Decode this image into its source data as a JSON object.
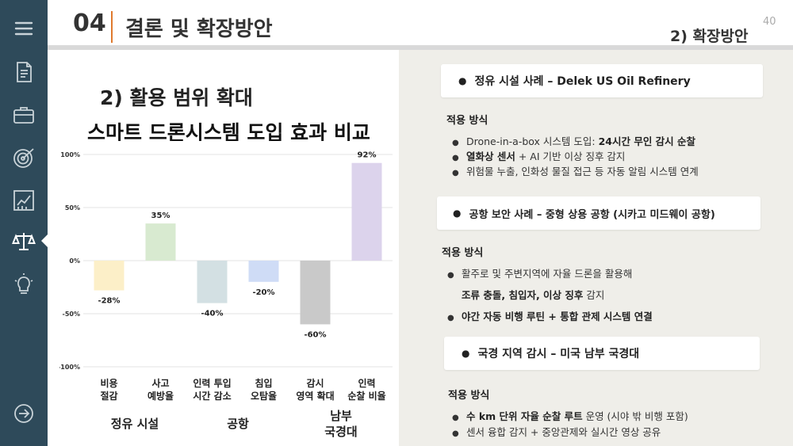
{
  "header": {
    "number": "04",
    "title": "결론 및 확장방안",
    "page_number": "40",
    "section_label": "2)  확장방안"
  },
  "sidebar": {
    "icons": [
      "menu-icon",
      "document-icon",
      "briefcase-icon",
      "target-icon",
      "chart-icon",
      "scales-icon",
      "lightbulb-icon",
      "arrow-circle-icon"
    ]
  },
  "left": {
    "title": "2) 활용 범위 확대",
    "chart_title": "스마트 드론시스템 도입 효과 비교"
  },
  "chart_data": {
    "type": "bar",
    "title": "스마트 드론시스템 도입 효과 비교",
    "categories": [
      "비용\n절감",
      "사고\n예방율",
      "인력 투입\n시간 감소",
      "침입\n오탐율",
      "감시\n영역 확대",
      "인력\n순찰 비율"
    ],
    "values": [
      -28,
      35,
      -40,
      -20,
      -60,
      92
    ],
    "data_labels": [
      "-28%",
      "35%",
      "-40%",
      "-20%",
      "-60%",
      "92%"
    ],
    "colors": [
      "#fcefc8",
      "#d8ead0",
      "#d3e0e3",
      "#cfdcf6",
      "#c9c9c9",
      "#dcd3ec"
    ],
    "yticks": [
      "100%",
      "50%",
      "0%",
      "-50%",
      "-100%"
    ],
    "ylim": [
      -100,
      100
    ],
    "grid": true,
    "groups": [
      {
        "label": "정유 시설",
        "span": [
          0,
          1
        ]
      },
      {
        "label": "공항",
        "span": [
          2,
          3
        ]
      },
      {
        "label": "남부\n국경대",
        "span": [
          4,
          5
        ]
      }
    ]
  },
  "right": {
    "cases": [
      {
        "title": "정유 시설 사례 – Delek US Oil Refinery",
        "method_label": "적용 방식",
        "bullets": [
          {
            "normal1": "Drone-in-a-box 시스템 도입: ",
            "bold": "24시간 무인 감시 순찰",
            "normal2": ""
          },
          {
            "normal1": "",
            "bold": "열화상 센서",
            "normal2": " + AI 기반 이상 징후 감지"
          },
          {
            "normal1": "위험물 누출, 인화성 물질 접근 등 자동 알림 시스템 연계",
            "bold": "",
            "normal2": ""
          }
        ]
      },
      {
        "title": "공항 보안 사례 – 중형 상용 공항 (시카고 미드웨이 공항)",
        "method_label": "적용 방식",
        "bullets": [
          {
            "normal1": "활주로 및 주변지역에 자율 드론을 활용해",
            "bold": "",
            "normal2": ""
          },
          {
            "normal1": "",
            "bold": "조류 충돌, 침입자, 이상 징후",
            "normal2": " 감지"
          },
          {
            "normal1": "",
            "bold": "야간 자동 비행 루틴 + 통합 관제 시스템 연결",
            "normal2": ""
          }
        ]
      },
      {
        "title": "국경 지역 감시 – 미국 남부 국경대",
        "method_label": "적용 방식",
        "bullets": [
          {
            "normal1": "",
            "bold": "수 km 단위 자율 순찰 루트",
            "normal2": " 운영 (시야 밖 비행 포함)"
          },
          {
            "normal1": "센서 융합 감지 + 중앙관제와 실시간 영상 공유",
            "bold": "",
            "normal2": ""
          }
        ]
      }
    ]
  }
}
